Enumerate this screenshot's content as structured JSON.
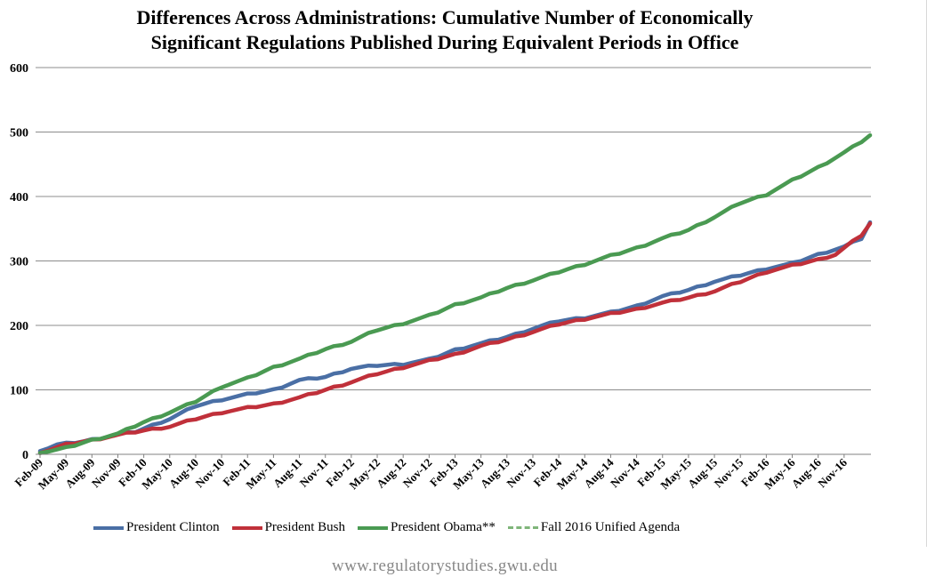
{
  "chart_data": {
    "type": "line",
    "title_line1": "Differences Across Administrations: Cumulative Number of Economically",
    "title_line2": "Significant Regulations Published During Equivalent Periods in Office",
    "ylim": [
      0,
      600
    ],
    "yticks": [
      "0",
      "100",
      "200",
      "300",
      "400",
      "500",
      "600"
    ],
    "grid": true,
    "x_labels": [
      "Feb-09",
      "May-09",
      "Aug-09",
      "Nov-09",
      "Feb-10",
      "May-10",
      "Aug-10",
      "Nov-10",
      "Feb-11",
      "May-11",
      "Aug-11",
      "Nov-11",
      "Feb-12",
      "May-12",
      "Aug-12",
      "Nov-12",
      "Feb-13",
      "May-13",
      "Aug-13",
      "Nov-13",
      "Feb-14",
      "May-14",
      "Aug-14",
      "Nov-14",
      "Feb-15",
      "May-15",
      "Aug-15",
      "Nov-15",
      "Feb-16",
      "May-16",
      "Aug-16",
      "Nov-16"
    ],
    "n_months": 97,
    "legend_position": "bottom",
    "series": [
      {
        "name": "President Clinton",
        "color": "#4a6fa5",
        "knots": [
          [
            0,
            5
          ],
          [
            2,
            15
          ],
          [
            5,
            20
          ],
          [
            8,
            28
          ],
          [
            11,
            35
          ],
          [
            15,
            55
          ],
          [
            18,
            75
          ],
          [
            21,
            85
          ],
          [
            24,
            93
          ],
          [
            27,
            100
          ],
          [
            30,
            115
          ],
          [
            33,
            120
          ],
          [
            36,
            133
          ],
          [
            39,
            138
          ],
          [
            42,
            140
          ],
          [
            45,
            147
          ],
          [
            48,
            162
          ],
          [
            51,
            172
          ],
          [
            54,
            182
          ],
          [
            57,
            195
          ],
          [
            60,
            207
          ],
          [
            63,
            212
          ],
          [
            66,
            220
          ],
          [
            69,
            230
          ],
          [
            72,
            245
          ],
          [
            75,
            255
          ],
          [
            78,
            268
          ],
          [
            81,
            278
          ],
          [
            84,
            288
          ],
          [
            87,
            296
          ],
          [
            90,
            310
          ],
          [
            93,
            322
          ],
          [
            95,
            335
          ],
          [
            96,
            360
          ]
        ]
      },
      {
        "name": "President Bush",
        "color": "#c0303a",
        "knots": [
          [
            0,
            2
          ],
          [
            3,
            15
          ],
          [
            6,
            22
          ],
          [
            9,
            30
          ],
          [
            12,
            37
          ],
          [
            15,
            43
          ],
          [
            18,
            55
          ],
          [
            21,
            65
          ],
          [
            24,
            72
          ],
          [
            27,
            78
          ],
          [
            30,
            88
          ],
          [
            33,
            100
          ],
          [
            36,
            112
          ],
          [
            39,
            125
          ],
          [
            42,
            135
          ],
          [
            45,
            145
          ],
          [
            48,
            155
          ],
          [
            51,
            168
          ],
          [
            54,
            178
          ],
          [
            57,
            190
          ],
          [
            60,
            202
          ],
          [
            63,
            210
          ],
          [
            66,
            218
          ],
          [
            69,
            225
          ],
          [
            72,
            235
          ],
          [
            75,
            243
          ],
          [
            78,
            253
          ],
          [
            81,
            268
          ],
          [
            84,
            283
          ],
          [
            87,
            293
          ],
          [
            90,
            302
          ],
          [
            92,
            310
          ],
          [
            93,
            320
          ],
          [
            95,
            340
          ],
          [
            96,
            358
          ]
        ]
      },
      {
        "name": "President Obama**",
        "color": "#4a9a52",
        "knots": [
          [
            0,
            2
          ],
          [
            3,
            10
          ],
          [
            6,
            22
          ],
          [
            9,
            32
          ],
          [
            12,
            50
          ],
          [
            15,
            65
          ],
          [
            18,
            82
          ],
          [
            21,
            105
          ],
          [
            24,
            118
          ],
          [
            27,
            135
          ],
          [
            30,
            148
          ],
          [
            33,
            163
          ],
          [
            36,
            175
          ],
          [
            39,
            193
          ],
          [
            42,
            203
          ],
          [
            45,
            215
          ],
          [
            48,
            232
          ],
          [
            51,
            243
          ],
          [
            54,
            258
          ],
          [
            57,
            270
          ],
          [
            60,
            283
          ],
          [
            63,
            295
          ],
          [
            66,
            308
          ],
          [
            69,
            320
          ],
          [
            72,
            335
          ],
          [
            75,
            348
          ],
          [
            78,
            368
          ],
          [
            81,
            390
          ],
          [
            84,
            403
          ],
          [
            87,
            425
          ],
          [
            90,
            445
          ],
          [
            93,
            468
          ],
          [
            95,
            485
          ],
          [
            96,
            495
          ]
        ]
      },
      {
        "name": "Fall 2016 Unified Agenda",
        "color": "#7fb57a",
        "dashed": true,
        "knots": []
      }
    ]
  },
  "footer": "www.regulatorystudies.gwu.edu"
}
